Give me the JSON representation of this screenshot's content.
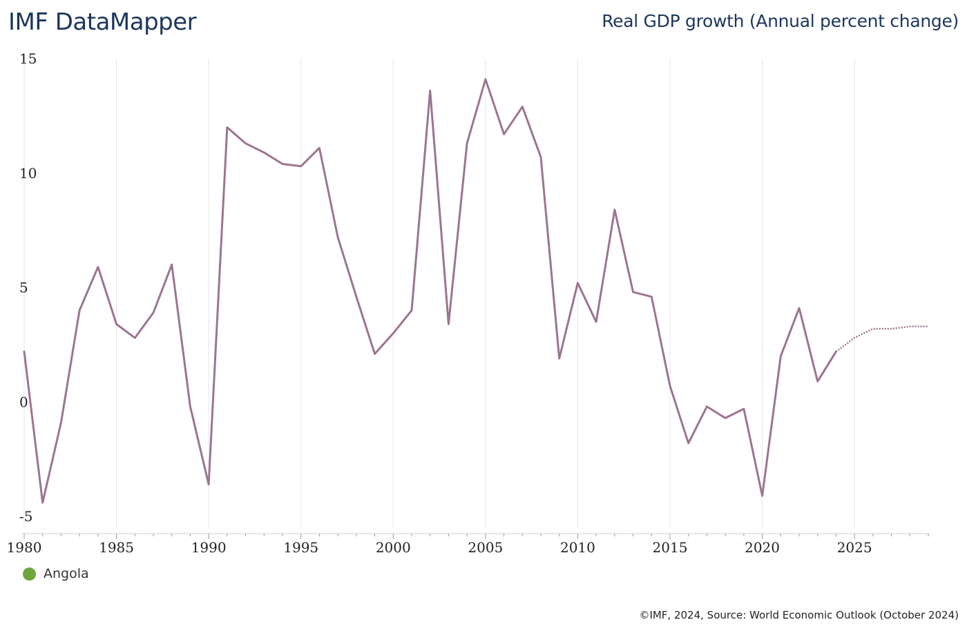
{
  "header": {
    "brand": "IMF DataMapper",
    "title": "Real GDP growth (Annual percent change)"
  },
  "footer": {
    "credit": "©IMF, 2024, Source: World Economic Outlook (October 2024)"
  },
  "colors": {
    "series_line": "#9b7590",
    "legend_marker": "#6ea63c",
    "grid": "#e6e6e6",
    "title_text": "#1b365d"
  },
  "chart_data": {
    "type": "line",
    "title": "Real GDP growth (Annual percent change)",
    "xlabel": "",
    "ylabel": "",
    "xlim": [
      1980,
      2029
    ],
    "ylim": [
      -5,
      15
    ],
    "grid": true,
    "x_ticks": [
      1980,
      1985,
      1990,
      1995,
      2000,
      2005,
      2010,
      2015,
      2020,
      2025
    ],
    "x_tick_labels": [
      "1980",
      "1985",
      "1990",
      "1995",
      "2000",
      "2005",
      "2010",
      "2015",
      "2020",
      "2025"
    ],
    "y_ticks": [
      -5,
      0,
      5,
      10,
      15
    ],
    "y_tick_labels": [
      "-5",
      "0",
      "5",
      "10",
      "15"
    ],
    "legend": {
      "placement": "bottom-left",
      "entries": [
        "Angola"
      ]
    },
    "series": [
      {
        "name": "Angola",
        "actual_through": 2024,
        "x": [
          1980,
          1981,
          1982,
          1983,
          1984,
          1985,
          1986,
          1987,
          1988,
          1989,
          1990,
          1991,
          1992,
          1993,
          1994,
          1995,
          1996,
          1997,
          1998,
          1999,
          2000,
          2001,
          2002,
          2003,
          2004,
          2005,
          2006,
          2007,
          2008,
          2009,
          2010,
          2011,
          2012,
          2013,
          2014,
          2015,
          2016,
          2017,
          2018,
          2019,
          2020,
          2021,
          2022,
          2023,
          2024,
          2025,
          2026,
          2027,
          2028,
          2029
        ],
        "values": [
          2.2,
          -4.4,
          -0.9,
          4.0,
          5.9,
          3.4,
          2.8,
          3.9,
          6.0,
          -0.2,
          -3.6,
          12.0,
          11.3,
          10.9,
          10.4,
          10.3,
          11.1,
          7.2,
          4.6,
          2.1,
          3.0,
          4.0,
          13.6,
          3.4,
          11.3,
          14.1,
          11.7,
          12.9,
          10.7,
          1.9,
          5.2,
          3.5,
          8.4,
          4.8,
          4.6,
          0.7,
          -1.8,
          -0.2,
          -0.7,
          -0.3,
          -4.1,
          2.0,
          4.1,
          0.9,
          2.2,
          2.8,
          3.2,
          3.2,
          3.3,
          3.3
        ]
      }
    ]
  }
}
